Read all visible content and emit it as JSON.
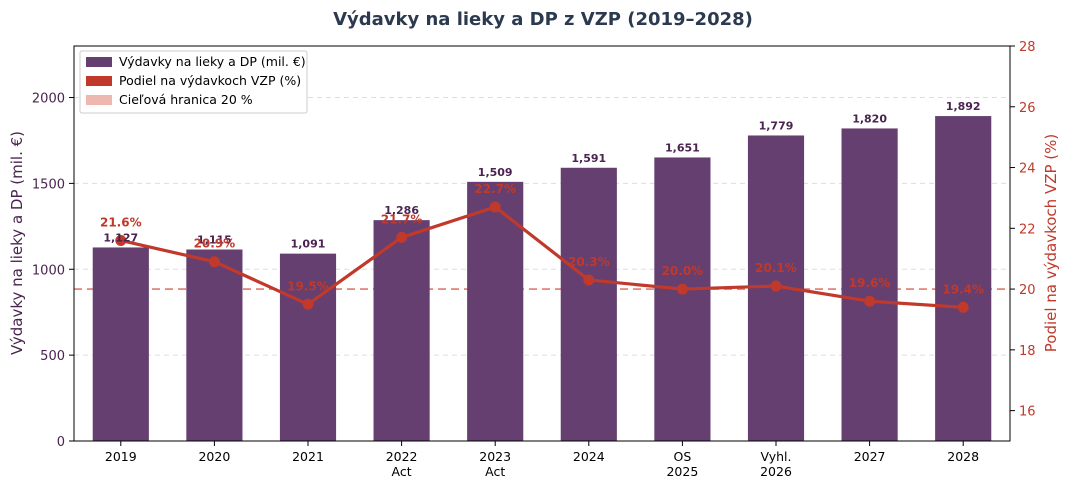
{
  "chart_data": {
    "type": "bar",
    "title": "Výdavky na lieky a DP z VZP (2019–2028)",
    "categories": [
      "2019",
      "2020",
      "2021",
      "2022\nAct",
      "2023\nAct",
      "2024",
      "OS\n2025",
      "Vyhl.\n2026",
      "2027",
      "2028"
    ],
    "series": [
      {
        "name": "Výdavky na lieky a DP (mil. €)",
        "type": "bar",
        "axis": "left",
        "color": "#643f70",
        "values": [
          1127,
          1115,
          1091,
          1286,
          1509,
          1591,
          1651,
          1779,
          1820,
          1892
        ],
        "labels": [
          "1,127",
          "1,115",
          "1,091",
          "1,286",
          "1,509",
          "1,591",
          "1,651",
          "1,779",
          "1,820",
          "1,892"
        ]
      },
      {
        "name": "Podiel na výdavkoch VZP (%)",
        "type": "line",
        "axis": "right",
        "color": "#c0392b",
        "values": [
          21.6,
          20.9,
          19.5,
          21.7,
          22.7,
          20.3,
          20.0,
          20.1,
          19.6,
          19.4
        ],
        "labels": [
          "21.6%",
          "20.9%",
          "19.5%",
          "21.7%",
          "22.7%",
          "20.3%",
          "20.0%",
          "20.1%",
          "19.6%",
          "19.4%"
        ]
      }
    ],
    "reference_line": {
      "name": "Cieľová hranica 20 %",
      "value": 20,
      "axis": "right",
      "color": "#e07b6f",
      "style": "dashed"
    },
    "ylabel": "Výdavky na lieky a DP (mil. €)",
    "y2label": "Podiel na výdavkoch VZP (%)",
    "ylim": [
      0,
      2300
    ],
    "y2lim": [
      15,
      28
    ],
    "yticks": [
      0,
      500,
      1000,
      1500,
      2000
    ],
    "y2ticks": [
      16,
      18,
      20,
      22,
      24,
      26,
      28
    ],
    "grid": "horizontal dashed",
    "legend": "top-left",
    "colors": {
      "left_axis": "#4a2350",
      "right_axis": "#c0392b"
    }
  }
}
